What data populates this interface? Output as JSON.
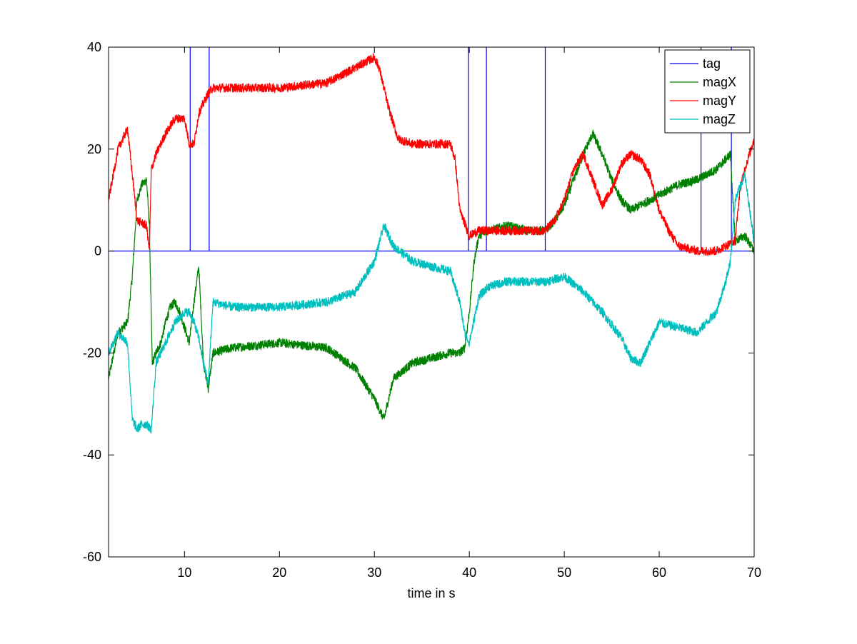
{
  "chart_data": {
    "type": "line",
    "xlabel": "time in s",
    "ylabel": "",
    "xlim": [
      2,
      70
    ],
    "ylim": [
      -60,
      40
    ],
    "xticks": [
      10,
      20,
      30,
      40,
      50,
      60,
      70
    ],
    "yticks": [
      -60,
      -40,
      -20,
      0,
      20,
      40
    ],
    "grid": false,
    "legend_position": "top-right",
    "series": [
      {
        "name": "tag",
        "color": "#0000ff",
        "style": "step",
        "x": [
          2,
          10.6,
          10.6,
          10.6,
          12.6,
          12.6,
          12.6,
          39.9,
          39.9,
          39.9,
          41.8,
          41.8,
          41.8,
          48,
          48,
          48,
          64.4,
          64.4,
          64.4,
          67.6,
          67.6,
          67.6,
          70
        ],
        "values": [
          0,
          0,
          40,
          0,
          0,
          40,
          0,
          0,
          40,
          0,
          0,
          40,
          0,
          0,
          40,
          0,
          0,
          40,
          0,
          0,
          40,
          0,
          0
        ]
      },
      {
        "name": "magX",
        "color": "#008000",
        "style": "noisy",
        "x": [
          2,
          3,
          4,
          4.5,
          5,
          5.5,
          6,
          6.3,
          6.6,
          7,
          7.5,
          8,
          8.5,
          9,
          9.5,
          10,
          10.5,
          11,
          11.5,
          12,
          12.5,
          13,
          15,
          20,
          25,
          28,
          30,
          31,
          32,
          34,
          36,
          38,
          39,
          39.5,
          40,
          40.5,
          41,
          42,
          44,
          46,
          48,
          49,
          50,
          51,
          52,
          53,
          54,
          55,
          56,
          57,
          58,
          60,
          62,
          64,
          66,
          67.5,
          68,
          69,
          70
        ],
        "values": [
          -25,
          -16,
          -14,
          -5,
          10,
          13,
          14,
          5,
          -22,
          -20,
          -18,
          -14,
          -11,
          -10,
          -12,
          -15,
          -18,
          -10,
          -3,
          -22,
          -27,
          -20,
          -19,
          -18,
          -19,
          -23,
          -29,
          -33,
          -25,
          -22,
          -21,
          -20,
          -20,
          -19,
          -12,
          -2,
          3,
          4,
          5,
          4,
          4,
          6,
          9,
          14,
          19,
          23,
          19,
          14,
          10,
          8,
          9,
          11,
          13,
          14,
          16,
          19,
          2,
          3,
          0
        ]
      },
      {
        "name": "magY",
        "color": "#ff0000",
        "style": "noisy",
        "x": [
          2,
          3,
          4,
          5,
          6,
          6.3,
          6.5,
          7,
          8,
          9,
          10,
          10.5,
          11,
          11.5,
          12,
          12.5,
          13,
          15,
          20,
          25,
          28,
          30,
          30.5,
          31.5,
          32.5,
          34,
          36,
          38,
          38.5,
          39,
          40,
          41,
          42,
          44,
          46,
          48,
          49,
          50,
          51,
          52,
          53,
          54,
          55,
          56,
          57,
          58,
          59,
          60,
          61,
          62,
          64,
          66,
          67,
          68,
          68.5,
          69,
          70
        ],
        "values": [
          10,
          20,
          24,
          6,
          5,
          0,
          16,
          19,
          23,
          26,
          26,
          21,
          21,
          27,
          29,
          31,
          32,
          32,
          32,
          33,
          36,
          38,
          36,
          28,
          22,
          21,
          21,
          21,
          18,
          8,
          3,
          4,
          4,
          4,
          4,
          4,
          6,
          10,
          16,
          19,
          14,
          9,
          12,
          17,
          19,
          18,
          15,
          8,
          4,
          1,
          0,
          0,
          1,
          2,
          12,
          16,
          22
        ]
      },
      {
        "name": "magZ",
        "color": "#00bfbf",
        "style": "noisy",
        "x": [
          2,
          3,
          4,
          4.5,
          5,
          5.5,
          6,
          6.5,
          7,
          8,
          9,
          10,
          10.5,
          11,
          11.5,
          12,
          12.5,
          13,
          15,
          20,
          25,
          28,
          30,
          31,
          32,
          34,
          36,
          38,
          38.5,
          39,
          39.5,
          40,
          41,
          42,
          44,
          46,
          48,
          50,
          52,
          54,
          56,
          57,
          58,
          59,
          60,
          62,
          64,
          66,
          67,
          67.5,
          68,
          69,
          70
        ],
        "values": [
          -20,
          -16,
          -18,
          -33,
          -35,
          -34,
          -34,
          -35,
          -22,
          -18,
          -14,
          -12,
          -12,
          -14,
          -17,
          -22,
          -26,
          -10,
          -11,
          -11,
          -10,
          -8,
          -2,
          5,
          1,
          -2,
          -3,
          -4,
          -7,
          -10,
          -16,
          -18,
          -9,
          -7,
          -6,
          -6,
          -6,
          -5,
          -8,
          -12,
          -17,
          -21,
          -22,
          -18,
          -14,
          -15,
          -16,
          -12,
          -6,
          -2,
          10,
          15,
          2
        ]
      }
    ]
  }
}
